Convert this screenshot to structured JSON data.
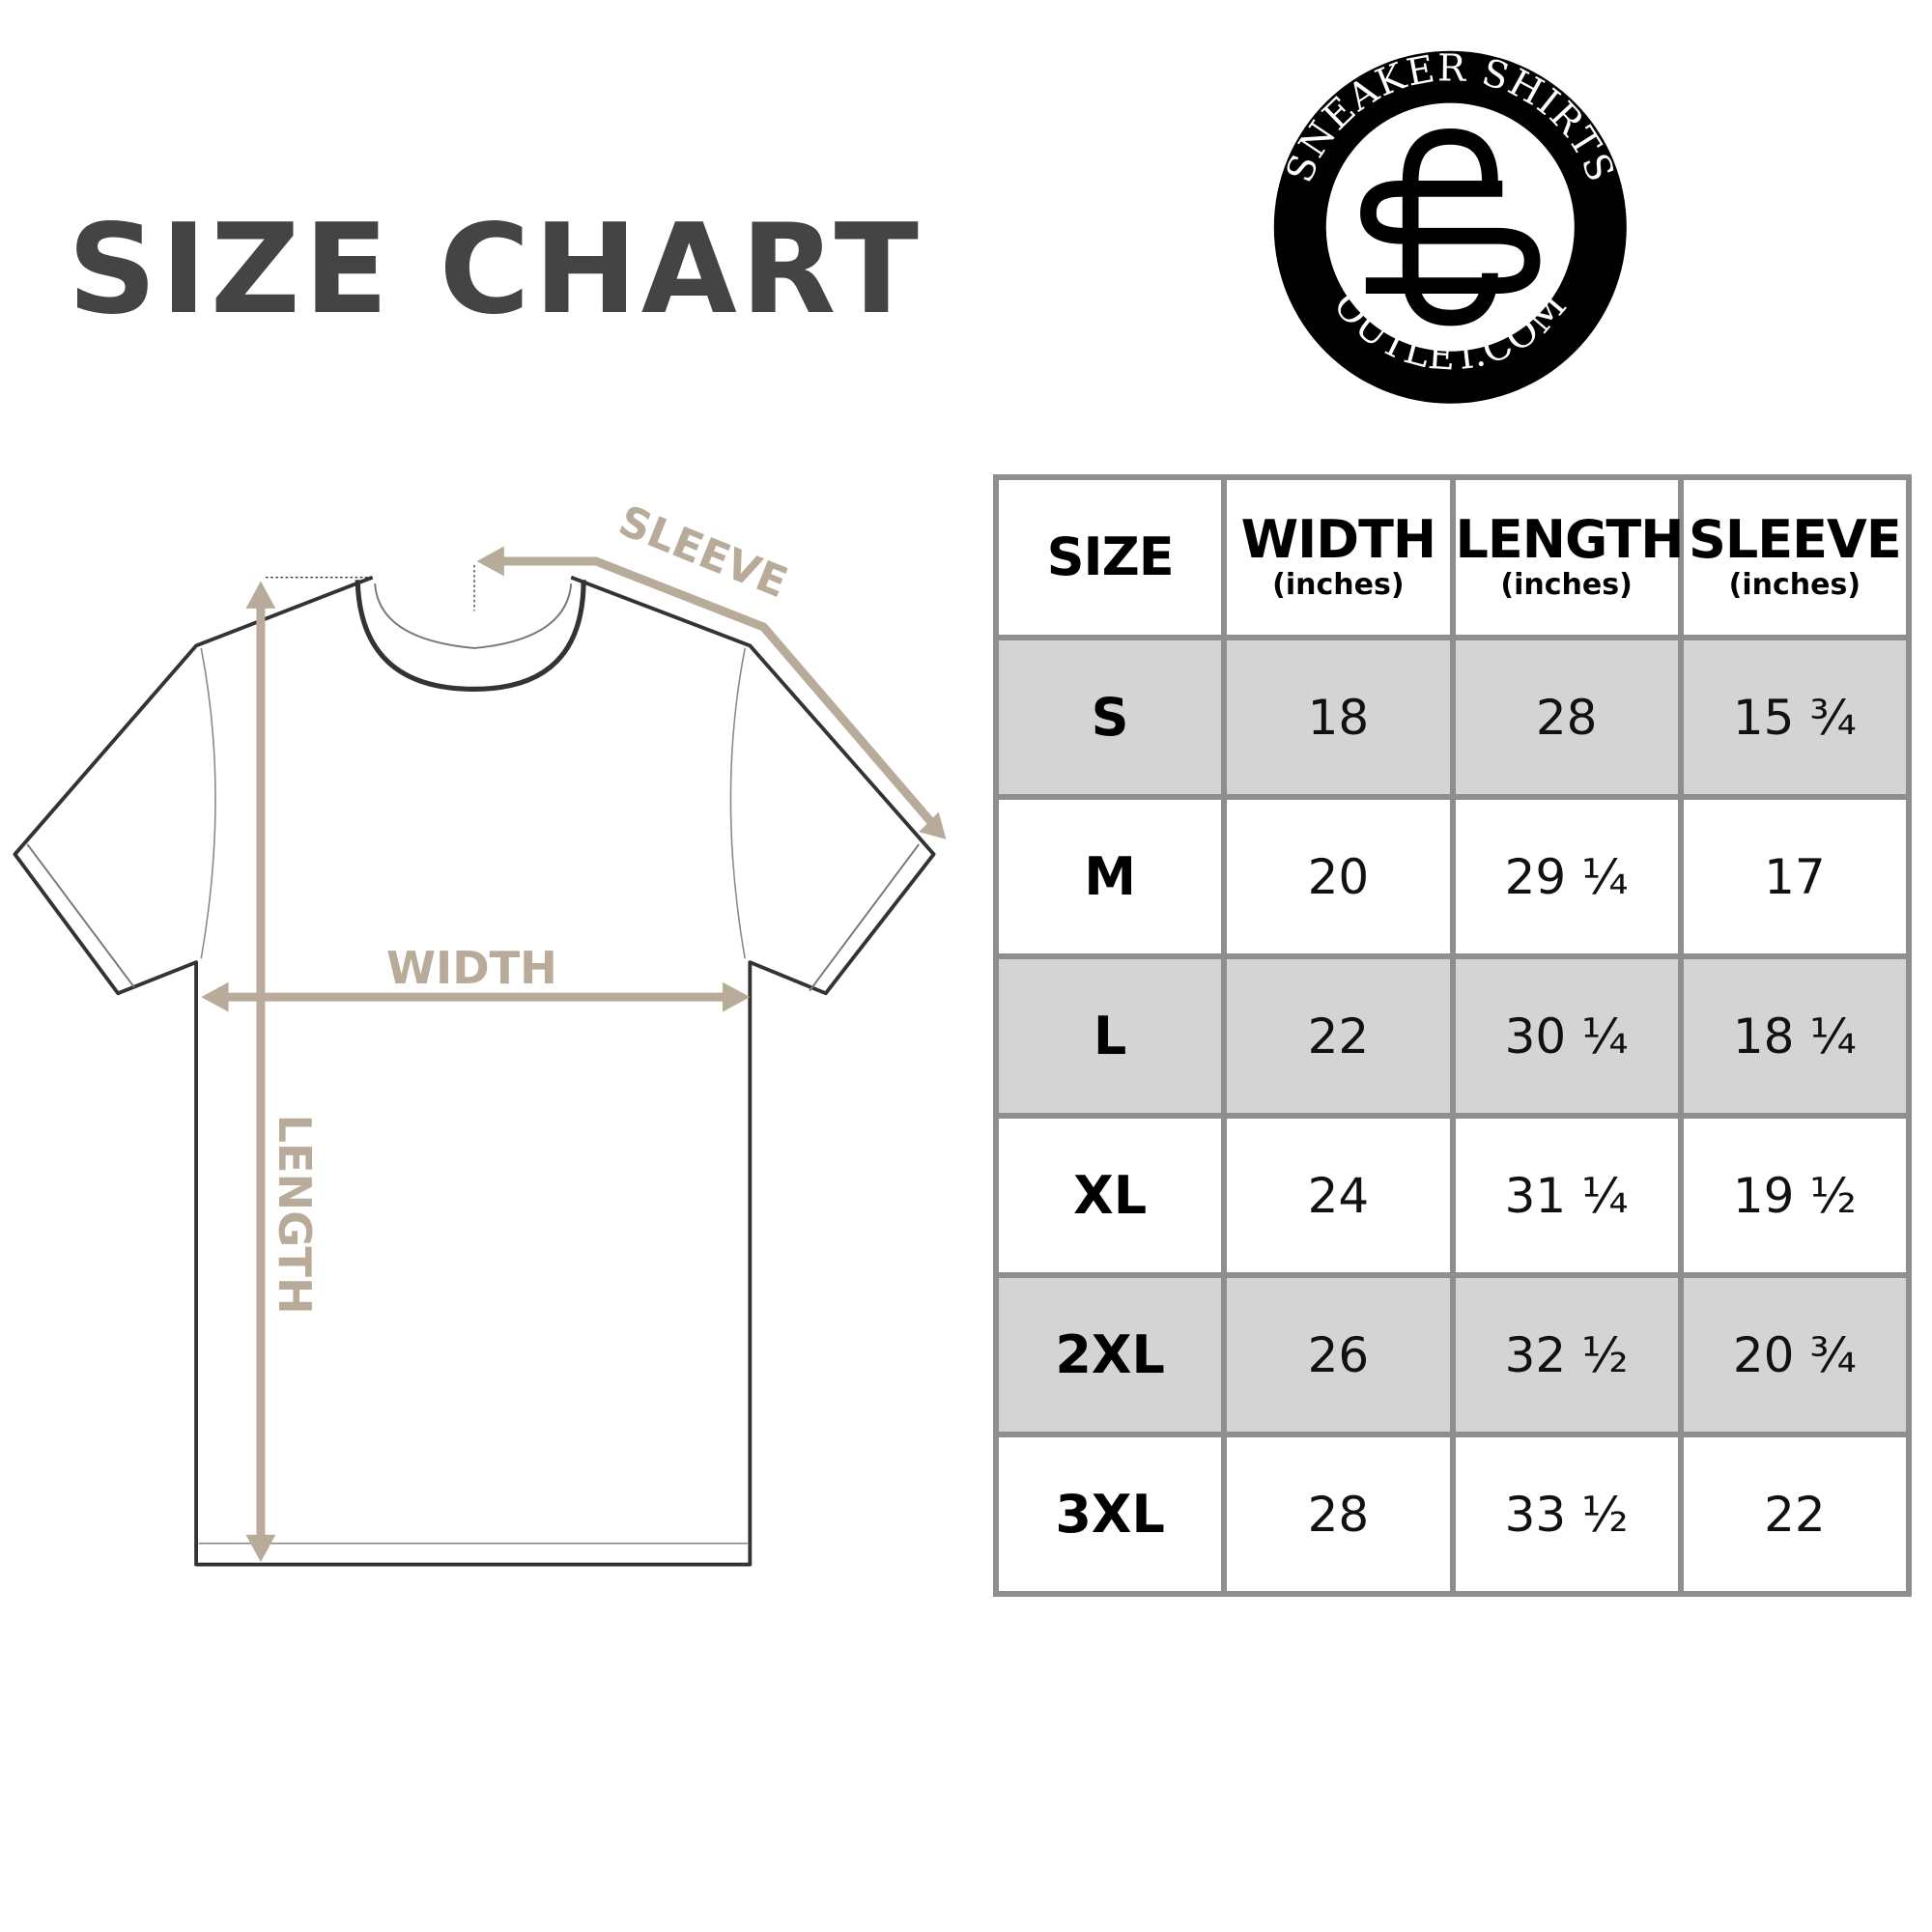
{
  "title": "SIZE CHART",
  "logo": {
    "top_text": "SNEAKER SHIRTS",
    "bottom_text": "OUTLET.COM",
    "monogram": "SO"
  },
  "diagram": {
    "labels": {
      "sleeve": "SLEEVE",
      "width": "WIDTH",
      "length": "LENGTH"
    },
    "arrow_color": "#b8ab9a"
  },
  "table": {
    "headers": [
      {
        "label": "SIZE",
        "unit": ""
      },
      {
        "label": "WIDTH",
        "unit": "(inches)"
      },
      {
        "label": "LENGTH",
        "unit": "(inches)"
      },
      {
        "label": "SLEEVE",
        "unit": "(inches)"
      }
    ],
    "rows": [
      [
        "S",
        "18",
        "28",
        "15 ¾"
      ],
      [
        "M",
        "20",
        "29 ¼",
        "17"
      ],
      [
        "L",
        "22",
        "30 ¼",
        "18 ¼"
      ],
      [
        "XL",
        "24",
        "31 ¼",
        "19 ½"
      ],
      [
        "2XL",
        "26",
        "32 ½",
        "20 ¾"
      ],
      [
        "3XL",
        "28",
        "33 ½",
        "22"
      ]
    ],
    "stripe_color": "#d4d4d4",
    "border_color": "#8e8e8e"
  }
}
